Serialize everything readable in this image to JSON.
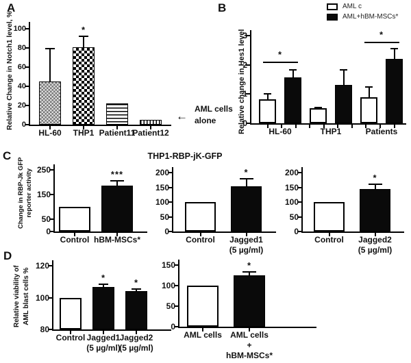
{
  "figure": {
    "panels": {
      "a": "A",
      "b": "B",
      "c": "C",
      "d": "D"
    },
    "annotation_a": {
      "arrow": "←",
      "line1": "AML cells",
      "line2": "alone"
    },
    "legend_b": [
      {
        "label": "AML c",
        "fill": "white"
      },
      {
        "label": "AML+hBM-MSCs*",
        "fill": "black"
      }
    ],
    "colors": {
      "axis": "#000000",
      "bar_black": "#0a0a0a",
      "bar_white": "#ffffff",
      "pattern_gray": "#8a8a8a"
    }
  },
  "chart_data": [
    {
      "id": "A",
      "type": "bar",
      "ylabel": "Relative Change in Notch1 level, %",
      "ylim": [
        0,
        100
      ],
      "yticks": [
        0,
        20,
        40,
        60,
        80,
        100
      ],
      "bars": [
        {
          "label": "HL-60",
          "value": 45,
          "err": 79,
          "fill": "gray-check"
        },
        {
          "label": "THP1",
          "value": 81,
          "err": 92,
          "sig": "*",
          "fill": "check"
        },
        {
          "label": "Patient11",
          "value": 22,
          "fill": "hstripe"
        },
        {
          "label": "Patient12",
          "value": 5,
          "fill": "vstripe"
        }
      ]
    },
    {
      "id": "B",
      "type": "grouped-bar",
      "ylabel": "Relative change in Hes1 level",
      "ylim": [
        0,
        3
      ],
      "yticks": [
        0,
        1,
        2,
        3
      ],
      "groups": [
        "HL-60",
        "THP1",
        "Patients"
      ],
      "series": [
        {
          "name": "AML c",
          "fill": "white"
        },
        {
          "name": "AML+hBM-MSCs*",
          "fill": "black"
        }
      ],
      "bars": [
        {
          "group": "HL-60",
          "series": "AML c",
          "value": 0.82,
          "err": 1.0,
          "fill": "white"
        },
        {
          "group": "HL-60",
          "series": "AML+hBM-MSCs*",
          "value": 1.58,
          "err": 1.82,
          "fill": "black"
        },
        {
          "group": "THP1",
          "series": "AML c",
          "value": 0.52,
          "err": 0.55,
          "fill": "white"
        },
        {
          "group": "THP1",
          "series": "AML+hBM-MSCs*",
          "value": 1.32,
          "err": 1.82,
          "fill": "black"
        },
        {
          "group": "Patients",
          "series": "AML c",
          "value": 0.9,
          "err": 1.25,
          "fill": "white"
        },
        {
          "group": "Patients",
          "series": "AML+hBM-MSCs*",
          "value": 2.2,
          "err": 2.55,
          "fill": "black"
        }
      ],
      "sig_lines": [
        {
          "group": 0,
          "y": 2.1,
          "label": "*"
        },
        {
          "group": 2,
          "y": 2.78,
          "label": "*"
        }
      ]
    },
    {
      "id": "C1",
      "type": "bar",
      "ylabel": "Change in RBP-Jk GFP reporter activity",
      "ylabel_lines": [
        "Change in RBP-Jk GFP",
        "reporter activity"
      ],
      "ylim": [
        0,
        250
      ],
      "yticks": [
        0,
        50,
        150,
        250
      ],
      "bars": [
        {
          "label": "Control",
          "value": 100,
          "fill": "white"
        },
        {
          "label": "hBM-MSCs*",
          "value": 187,
          "err": 205,
          "sig": "***",
          "fill": "black"
        }
      ]
    },
    {
      "id": "C2",
      "type": "bar",
      "title": "THP1-RBP-jK-GFP",
      "ylim": [
        0,
        200
      ],
      "yticks": [
        0,
        50,
        100,
        150,
        200
      ],
      "bars": [
        {
          "label": "Control",
          "value": 100,
          "fill": "white"
        },
        {
          "label": "Jagged1",
          "sub": "(5 µg/ml)",
          "value": 153,
          "err": 180,
          "sig": "*",
          "fill": "black"
        }
      ]
    },
    {
      "id": "C3",
      "type": "bar",
      "ylim": [
        0,
        200
      ],
      "yticks": [
        0,
        50,
        100,
        150,
        200
      ],
      "bars": [
        {
          "label": "Control",
          "value": 100,
          "fill": "white"
        },
        {
          "label": "Jagged2",
          "sub": "(5 µg/ml)",
          "value": 145,
          "err": 161,
          "sig": "*",
          "fill": "black"
        }
      ]
    },
    {
      "id": "D1",
      "type": "bar",
      "ylabel": "Relative viability of AML blast cells %",
      "ylabel_lines": [
        "Relative viability of",
        "AML blast cells %"
      ],
      "ylim": [
        80,
        120
      ],
      "yticks": [
        80,
        100,
        120
      ],
      "bars": [
        {
          "label": "Control",
          "value": 100,
          "fill": "white"
        },
        {
          "label": "Jagged1",
          "sub": "(5 µg/ml)",
          "value": 106.5,
          "err": 108.5,
          "sig": "*",
          "fill": "black"
        },
        {
          "label": "Jagged2",
          "sub": "(5 µg/ml)",
          "value": 104,
          "err": 105.5,
          "sig": "*",
          "fill": "black"
        }
      ]
    },
    {
      "id": "D2",
      "type": "bar",
      "ylim": [
        0,
        150
      ],
      "yticks": [
        0,
        50,
        100,
        150
      ],
      "bars": [
        {
          "label": "AML cells",
          "value": 100,
          "fill": "white"
        },
        {
          "label": "AML cells",
          "sub": "+",
          "sub2": "hBM-MSCs*",
          "value": 125,
          "err": 133,
          "sig": "*",
          "fill": "black"
        }
      ]
    }
  ]
}
